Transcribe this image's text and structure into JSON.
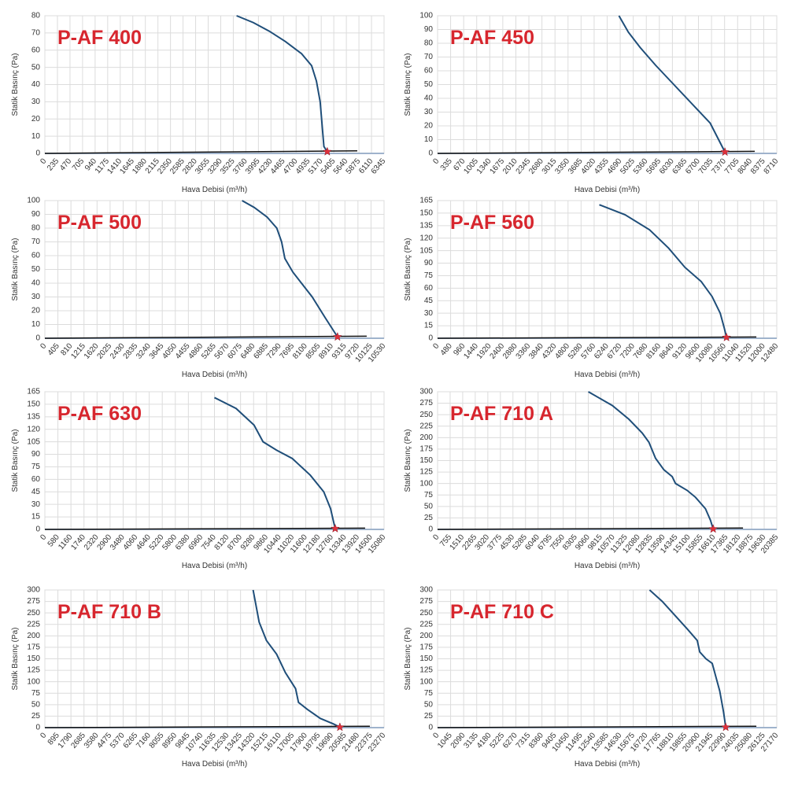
{
  "chart_data": [
    {
      "type": "line",
      "title": "P-AF 400",
      "x_label": "Hava Debisi (m³/h)",
      "y_label": "Statik Basınç (Pa)",
      "grid": true,
      "xlim": [
        0,
        6345
      ],
      "xticks": [
        0,
        235,
        470,
        705,
        940,
        1175,
        1410,
        1645,
        1880,
        2115,
        2350,
        2585,
        2820,
        3055,
        3290,
        3525,
        3760,
        3995,
        4230,
        4465,
        4700,
        4935,
        5170,
        5405,
        5640,
        5875,
        6110,
        6345
      ],
      "ylim": [
        0,
        80
      ],
      "yticks": [
        0,
        10,
        20,
        30,
        40,
        50,
        60,
        70,
        80
      ],
      "series": [
        {
          "color": "#1f4e79",
          "x": [
            3586,
            3900,
            4200,
            4500,
            4800,
            4990,
            5080,
            5150,
            5190,
            5220,
            5283
          ],
          "values": [
            80,
            76,
            71,
            65,
            58,
            51,
            42,
            30,
            15,
            4,
            1
          ]
        },
        {
          "color": "#111111",
          "x": [
            0,
            5844
          ],
          "values": [
            0,
            1.5
          ]
        }
      ],
      "point": {
        "x": 5283,
        "y": 1,
        "color": "#e0303a"
      }
    },
    {
      "type": "line",
      "title": "P-AF 450",
      "x_label": "Hava Debisi (m³/h)",
      "y_label": "Statik Basınç (Pa)",
      "grid": true,
      "xlim": [
        0,
        8710
      ],
      "xticks": [
        0,
        335,
        670,
        1005,
        1340,
        1675,
        2010,
        2345,
        2680,
        3015,
        3350,
        3685,
        4020,
        4355,
        4690,
        5025,
        5360,
        5695,
        6030,
        6365,
        6700,
        7035,
        7370,
        7705,
        8040,
        8375,
        8710
      ],
      "ylim": [
        0,
        100
      ],
      "yticks": [
        0,
        10,
        20,
        30,
        40,
        50,
        60,
        70,
        80,
        90,
        100
      ],
      "series": [
        {
          "color": "#1f4e79",
          "x": [
            4657,
            4900,
            5200,
            5600,
            6000,
            6500,
            7000,
            7379
          ],
          "values": [
            100,
            88,
            77,
            64,
            52,
            37,
            22,
            1
          ]
        },
        {
          "color": "#111111",
          "x": [
            0,
            8145
          ],
          "values": [
            0,
            1.5
          ]
        }
      ],
      "point": {
        "x": 7379,
        "y": 1,
        "color": "#e0303a"
      }
    },
    {
      "type": "line",
      "title": "P-AF 500",
      "x_label": "Hava Debisi (m³/h)",
      "y_label": "Statik Basınç (Pa)",
      "grid": true,
      "xlim": [
        0,
        10530
      ],
      "xticks": [
        0,
        405,
        810,
        1215,
        1620,
        2025,
        2430,
        2835,
        3240,
        3645,
        4050,
        4455,
        4860,
        5265,
        5670,
        6075,
        6480,
        6885,
        7290,
        7695,
        8100,
        8505,
        8910,
        9315,
        9720,
        10125,
        10530
      ],
      "ylim": [
        0,
        100
      ],
      "yticks": [
        0,
        10,
        20,
        30,
        40,
        50,
        60,
        70,
        80,
        90,
        100
      ],
      "series": [
        {
          "color": "#1f4e79",
          "x": [
            6122,
            6500,
            6900,
            7200,
            7350,
            7450,
            7700,
            8000,
            8300,
            8700,
            9085
          ],
          "values": [
            100,
            95,
            88,
            80,
            70,
            58,
            48,
            39,
            30,
            15,
            1
          ]
        },
        {
          "color": "#111111",
          "x": [
            0,
            9991
          ],
          "values": [
            0,
            1.5
          ]
        }
      ],
      "point": {
        "x": 9085,
        "y": 1,
        "color": "#e0303a"
      }
    },
    {
      "type": "line",
      "title": "P-AF 560",
      "x_label": "Hava Debisi (m³/h)",
      "y_label": "Statik Basınç (Pa)",
      "grid": true,
      "xlim": [
        0,
        12480
      ],
      "xticks": [
        0,
        480,
        960,
        1440,
        1920,
        2400,
        2880,
        3360,
        3840,
        4320,
        4800,
        5280,
        5760,
        6240,
        6720,
        7200,
        7680,
        8160,
        8640,
        9120,
        9600,
        10080,
        10560,
        11040,
        11520,
        12000,
        12480
      ],
      "ylim": [
        0,
        165
      ],
      "yticks": [
        0,
        15,
        30,
        45,
        60,
        75,
        90,
        105,
        120,
        135,
        150,
        165
      ],
      "series": [
        {
          "color": "#1f4e79",
          "x": [
            5951,
            6900,
            7800,
            8500,
            9100,
            9700,
            10100,
            10400,
            10550,
            10631
          ],
          "values": [
            160,
            148,
            130,
            108,
            85,
            68,
            50,
            30,
            12,
            1
          ]
        },
        {
          "color": "#111111",
          "x": [
            0,
            11729
          ],
          "values": [
            0,
            1.5
          ]
        }
      ],
      "point": {
        "x": 10631,
        "y": 1,
        "color": "#e0303a"
      }
    },
    {
      "type": "line",
      "title": "P-AF 630",
      "x_label": "Hava Debisi (m³/h)",
      "y_label": "Statik Basınç (Pa)",
      "grid": true,
      "xlim": [
        0,
        15080
      ],
      "xticks": [
        0,
        580,
        1160,
        1740,
        2320,
        2900,
        3480,
        4060,
        4640,
        5220,
        5800,
        6380,
        6960,
        7540,
        8120,
        8700,
        9280,
        9860,
        10440,
        11020,
        11600,
        12180,
        12760,
        13340,
        13920,
        14500,
        15080
      ],
      "ylim": [
        0,
        165
      ],
      "yticks": [
        0,
        15,
        30,
        45,
        60,
        75,
        90,
        105,
        120,
        135,
        150,
        165
      ],
      "series": [
        {
          "color": "#1f4e79",
          "x": [
            7540,
            8500,
            9300,
            9700,
            10300,
            11000,
            11800,
            12400,
            12700,
            12906
          ],
          "values": [
            158,
            145,
            125,
            105,
            95,
            85,
            65,
            45,
            25,
            1
          ]
        },
        {
          "color": "#111111",
          "x": [
            0,
            14238
          ],
          "values": [
            0,
            1.5
          ]
        }
      ],
      "point": {
        "x": 12906,
        "y": 1,
        "color": "#e0303a"
      }
    },
    {
      "type": "line",
      "title": "P-AF 710 A",
      "x_label": "Hava Debisi (m³/h)",
      "y_label": "Statik Basınç (Pa)",
      "grid": true,
      "xlim": [
        0,
        20385
      ],
      "xticks": [
        0,
        755,
        1510,
        2265,
        3020,
        3775,
        4530,
        5285,
        6040,
        6795,
        7550,
        8305,
        9060,
        9815,
        10570,
        11325,
        12080,
        12835,
        13590,
        14345,
        15100,
        15855,
        16610,
        17365,
        18120,
        18875,
        19630,
        20385
      ],
      "ylim": [
        0,
        300
      ],
      "yticks": [
        0,
        25,
        50,
        75,
        100,
        125,
        150,
        175,
        200,
        225,
        250,
        275,
        300
      ],
      "series": [
        {
          "color": "#1f4e79",
          "x": [
            9060,
            10500,
            11500,
            12300,
            12700,
            13100,
            13600,
            14100,
            14300,
            15000,
            15500,
            16100,
            16400,
            16563
          ],
          "values": [
            300,
            270,
            240,
            210,
            190,
            155,
            130,
            115,
            100,
            85,
            70,
            45,
            20,
            1
          ]
        },
        {
          "color": "#111111",
          "x": [
            0,
            18356
          ],
          "values": [
            0,
            3
          ]
        }
      ],
      "point": {
        "x": 16563,
        "y": 1,
        "color": "#e0303a"
      }
    },
    {
      "type": "line",
      "title": "P-AF 710 B",
      "x_label": "Hava Debisi (m³/h)",
      "y_label": "Statik Basınç (Pa)",
      "grid": true,
      "xlim": [
        0,
        23270
      ],
      "xticks": [
        0,
        895,
        1790,
        2685,
        3580,
        4475,
        5370,
        6265,
        7160,
        8055,
        8950,
        9845,
        10740,
        11635,
        12530,
        13425,
        14320,
        15215,
        16110,
        17005,
        17900,
        18795,
        19690,
        20585,
        21480,
        22375,
        23270
      ],
      "ylim": [
        0,
        300
      ],
      "yticks": [
        0,
        25,
        50,
        75,
        100,
        125,
        150,
        175,
        200,
        225,
        250,
        275,
        300
      ],
      "series": [
        {
          "color": "#1f4e79",
          "x": [
            14287,
            14700,
            15200,
            15900,
            16500,
            16900,
            17200,
            17400,
            18000,
            18900,
            19800,
            20240
          ],
          "values": [
            300,
            230,
            190,
            160,
            120,
            100,
            85,
            55,
            40,
            20,
            8,
            1
          ]
        },
        {
          "color": "#111111",
          "x": [
            0,
            22296
          ],
          "values": [
            0,
            3
          ]
        }
      ],
      "point": {
        "x": 20240,
        "y": 1,
        "color": "#e0303a"
      }
    },
    {
      "type": "line",
      "title": "P-AF 710 C",
      "x_label": "Hava Debisi (m³/h)",
      "y_label": "Statik Basınç (Pa)",
      "grid": true,
      "xlim": [
        0,
        27170
      ],
      "xticks": [
        0,
        1045,
        2090,
        3135,
        4180,
        5225,
        6270,
        7315,
        8360,
        9405,
        10450,
        11495,
        12540,
        13585,
        14630,
        15675,
        16720,
        17765,
        18810,
        19855,
        20900,
        21945,
        22990,
        24035,
        25080,
        26125,
        27170
      ],
      "ylim": [
        0,
        300
      ],
      "yticks": [
        0,
        25,
        50,
        75,
        100,
        125,
        150,
        175,
        200,
        225,
        250,
        275,
        300
      ],
      "series": [
        {
          "color": "#1f4e79",
          "x": [
            16981,
            18000,
            19000,
            20000,
            20800,
            21000,
            21500,
            22000,
            22300,
            22600,
            22900,
            23082
          ],
          "values": [
            300,
            275,
            245,
            215,
            190,
            165,
            150,
            140,
            110,
            80,
            35,
            1
          ]
        },
        {
          "color": "#111111",
          "x": [
            0,
            25535
          ],
          "values": [
            0,
            3
          ]
        }
      ],
      "point": {
        "x": 23082,
        "y": 1,
        "color": "#e0303a"
      }
    }
  ]
}
